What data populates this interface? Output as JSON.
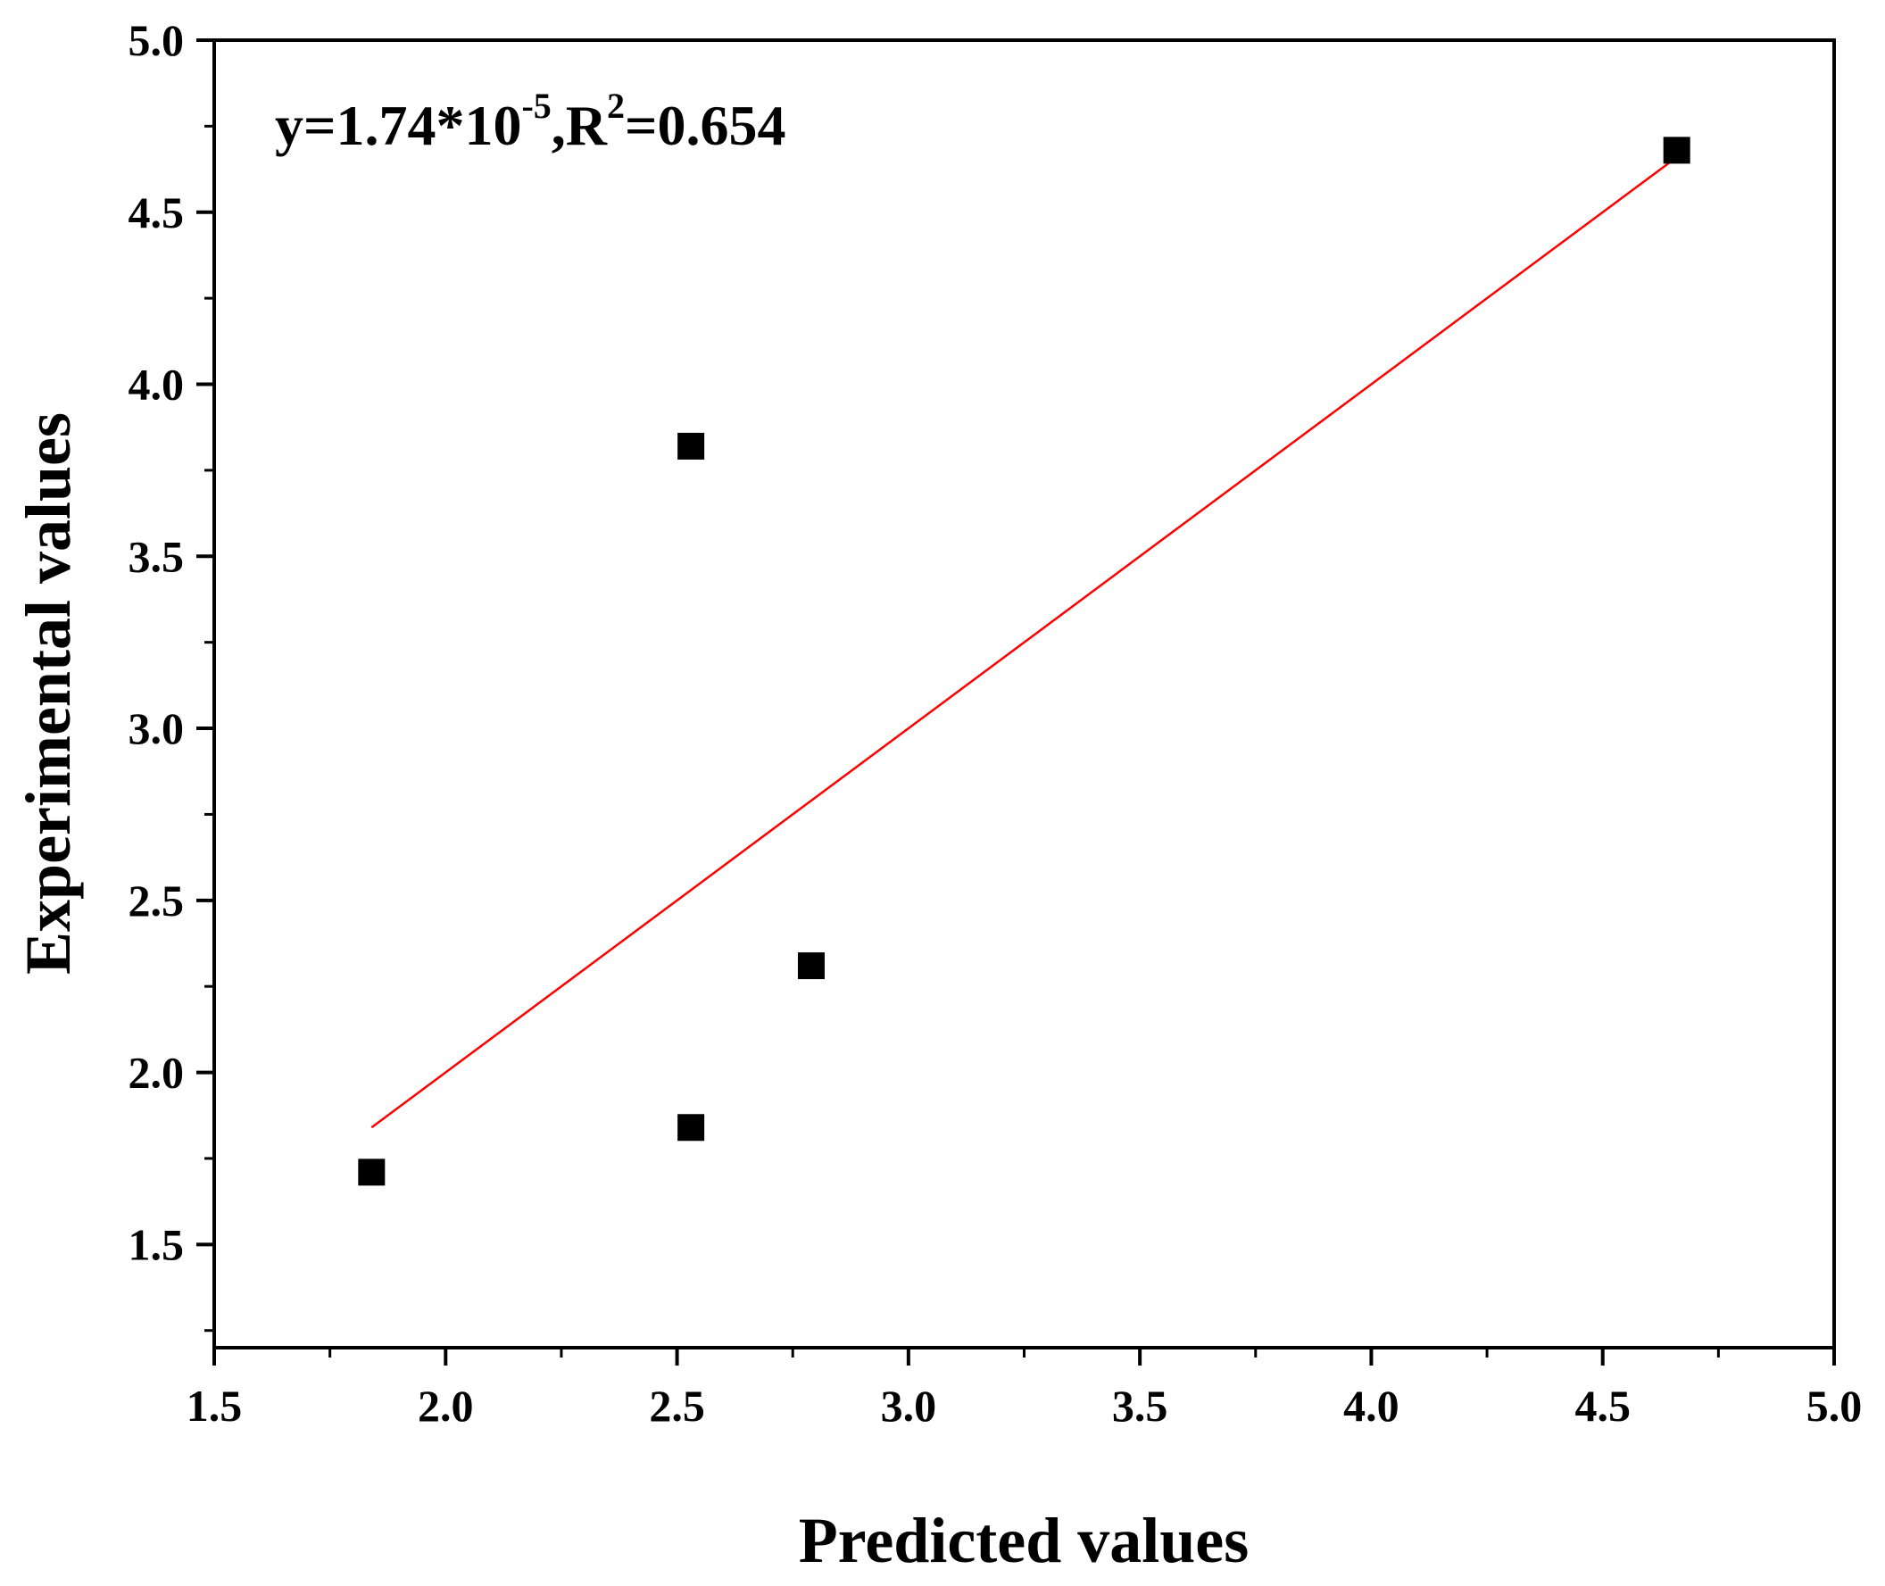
{
  "chart_data": {
    "type": "scatter",
    "xlabel": "Predicted values",
    "ylabel": "Experimental values",
    "xlim": [
      1.5,
      5.0
    ],
    "ylim": [
      1.2,
      5.0
    ],
    "x_ticks": [
      "1.5",
      "2.0",
      "2.5",
      "3.0",
      "3.5",
      "4.0",
      "4.5",
      "5.0"
    ],
    "y_ticks": [
      "1.5",
      "2.0",
      "2.5",
      "3.0",
      "3.5",
      "4.0",
      "4.5",
      "5.0"
    ],
    "x_tick_values": [
      1.5,
      2.0,
      2.5,
      3.0,
      3.5,
      4.0,
      4.5,
      5.0
    ],
    "y_tick_values": [
      1.5,
      2.0,
      2.5,
      3.0,
      3.5,
      4.0,
      4.5,
      5.0
    ],
    "points": [
      {
        "x": 1.84,
        "y": 1.71
      },
      {
        "x": 2.53,
        "y": 1.84
      },
      {
        "x": 2.53,
        "y": 3.82
      },
      {
        "x": 2.79,
        "y": 2.31
      },
      {
        "x": 4.66,
        "y": 4.68
      }
    ],
    "fit_line": {
      "x": [
        1.84,
        4.66
      ],
      "y": [
        1.84,
        4.66
      ],
      "color": "#ff0000"
    },
    "marker_color": "#000000",
    "grid": false,
    "annotation": {
      "prefix": "y=1.74*10",
      "exponent": "-5",
      "middle": ",R",
      "r_exponent": "2",
      "suffix": "=0.654"
    }
  }
}
